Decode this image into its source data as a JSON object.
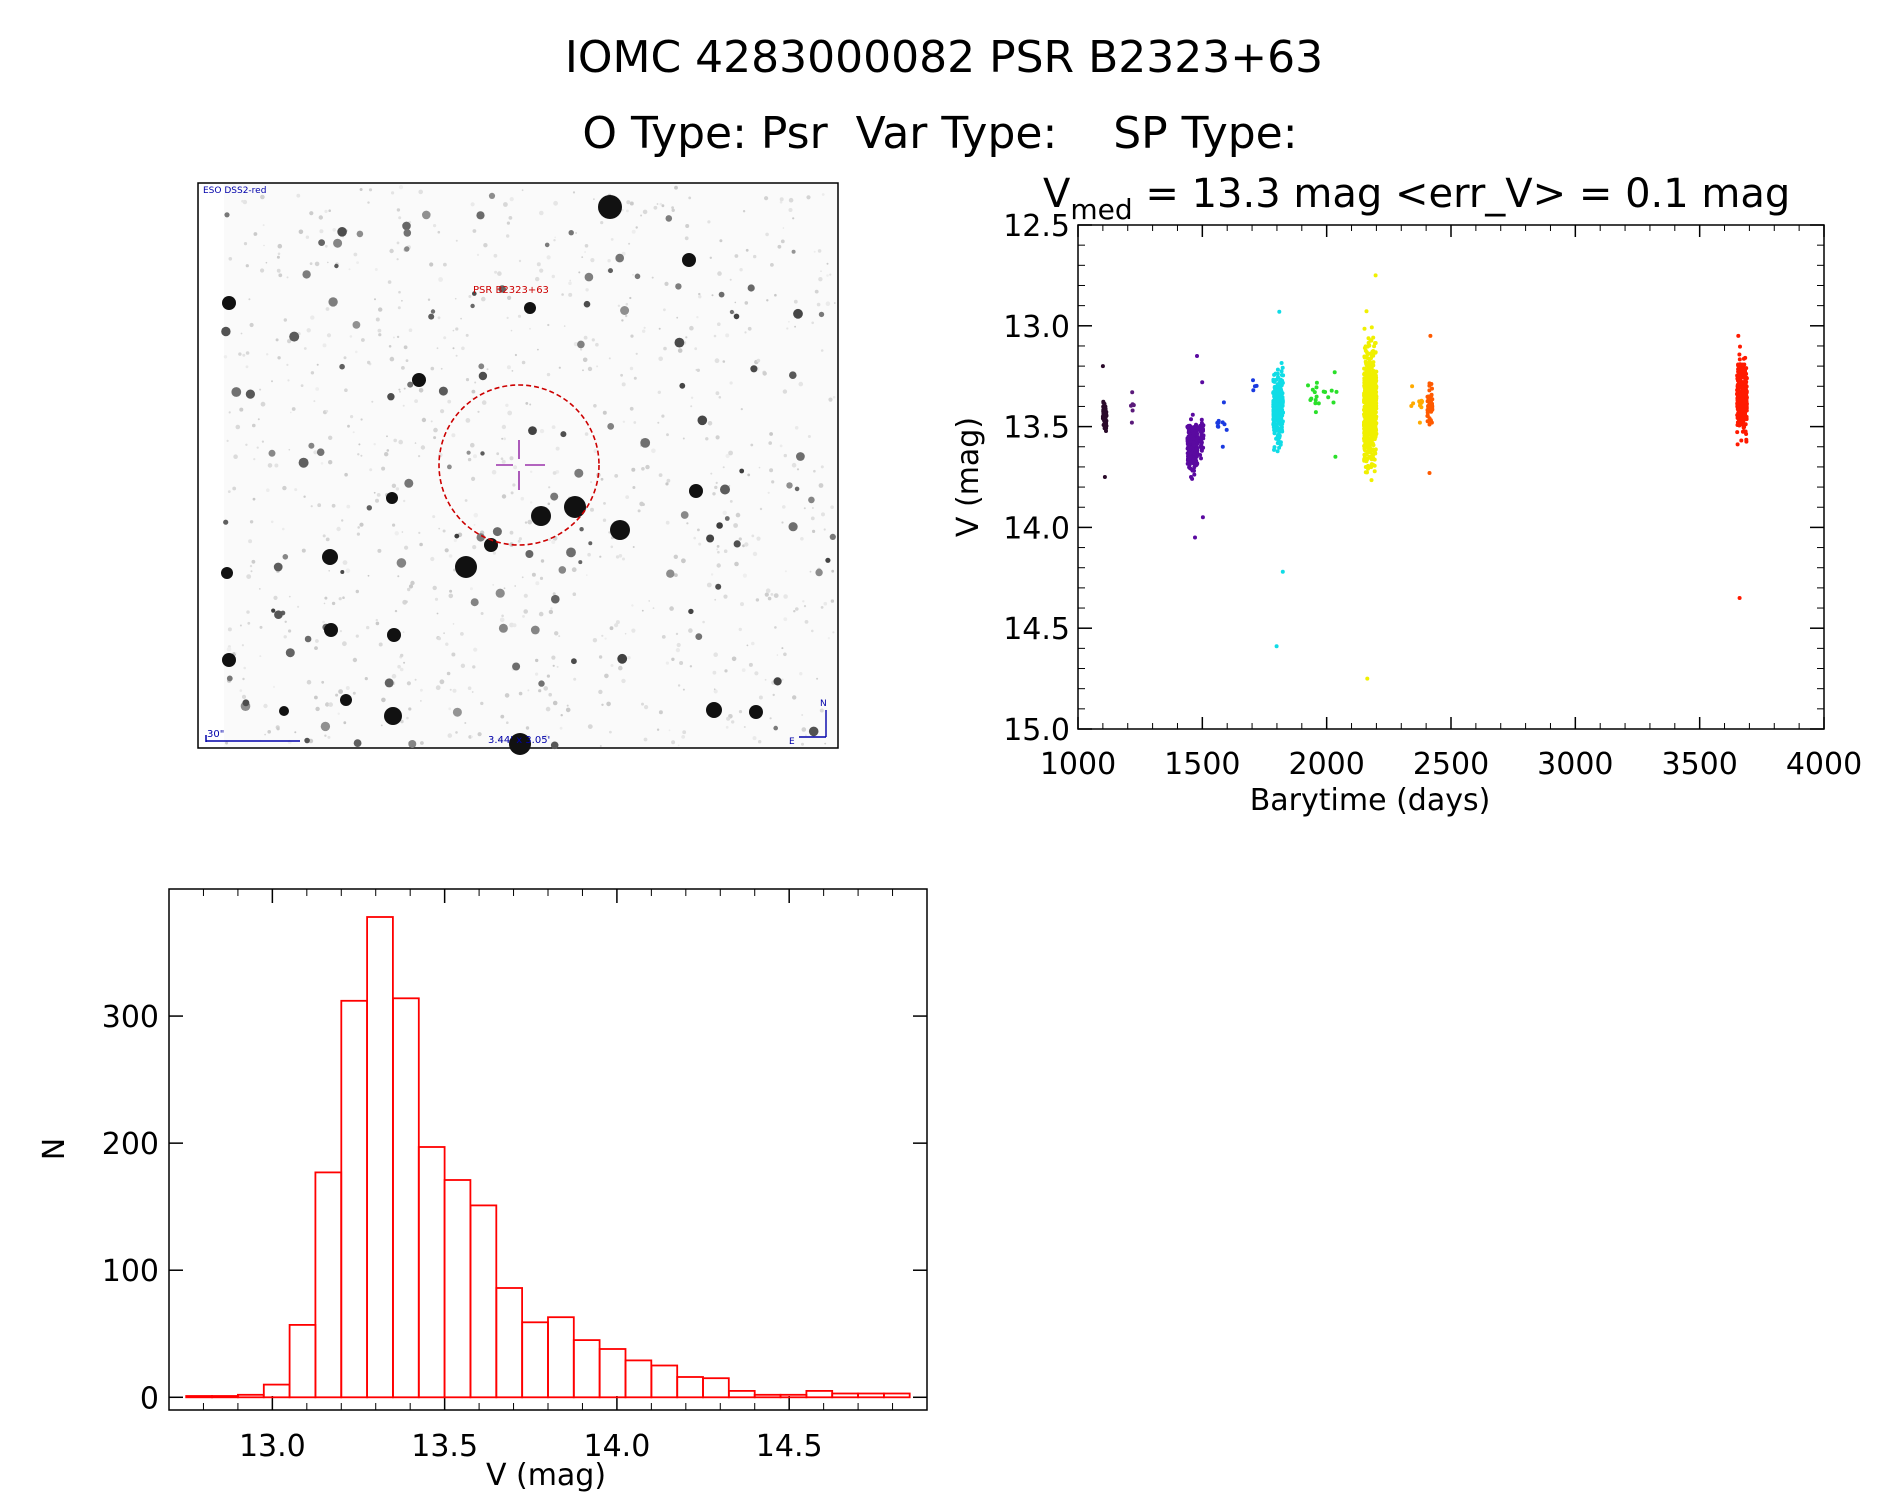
{
  "header": {
    "title": "IOMC 4283000082    PSR B2323+63",
    "subtitle": "O Type: Psr  Var Type:    SP Type:"
  },
  "finding_chart": {
    "survey_label": "ESO DSS2-red",
    "target_label": "PSR B2323+63",
    "scale_label": "30\"",
    "size_label": "3.44' x 3.05'",
    "north_label": "N",
    "east_label": "E",
    "colors": {
      "annotation": "#0000aa",
      "target": "#cc0000",
      "crosshair": "#9933aa"
    }
  },
  "chart_data": [
    {
      "type": "scatter",
      "title_main": "V",
      "title_sub": "med",
      "title_rest": " = 13.3 mag <err_V> = 0.1 mag",
      "xlabel": "Barytime (days)",
      "ylabel": "V (mag)",
      "xlim": [
        1000,
        4000
      ],
      "ylim": [
        15.0,
        12.5
      ],
      "y_inverted": true,
      "xticks": [
        1000,
        1500,
        2000,
        2500,
        3000,
        3500,
        4000
      ],
      "xtick_labels": [
        "1000",
        "1500",
        "2000",
        "2500",
        "3000",
        "3500",
        "4000"
      ],
      "yticks": [
        12.5,
        13.0,
        13.5,
        14.0,
        14.5,
        15.0
      ],
      "ytick_labels": [
        "12.5",
        "13.0",
        "13.5",
        "14.0",
        "14.5",
        "15.0"
      ],
      "series": [
        {
          "color": "#2a0a2a",
          "x_range": [
            1100,
            1115
          ],
          "y_range": [
            13.2,
            13.75
          ],
          "y_center": 13.45,
          "n": 60
        },
        {
          "color": "#5a1a7a",
          "x_range": [
            1210,
            1225
          ],
          "y_range": [
            13.33,
            13.48
          ],
          "y_center": 13.4,
          "n": 6
        },
        {
          "color": "#5a0aa0",
          "x_range": [
            1440,
            1480
          ],
          "y_range": [
            13.15,
            14.05
          ],
          "y_center": 13.6,
          "n": 260
        },
        {
          "color": "#5a0aa0",
          "x_range": [
            1490,
            1505
          ],
          "y_range": [
            13.28,
            13.95
          ],
          "y_center": 13.55,
          "n": 50
        },
        {
          "color": "#1a3ae0",
          "x_range": [
            1560,
            1600
          ],
          "y_range": [
            13.38,
            13.6
          ],
          "y_center": 13.5,
          "n": 10
        },
        {
          "color": "#1a3ae0",
          "x_range": [
            1700,
            1720
          ],
          "y_range": [
            13.27,
            13.32
          ],
          "y_center": 13.3,
          "n": 4
        },
        {
          "color": "#10dce6",
          "x_range": [
            1785,
            1825
          ],
          "y_range": [
            12.93,
            14.22
          ],
          "y_center": 13.4,
          "n": 300
        },
        {
          "color": "#10dce6",
          "x_range": [
            1795,
            1800
          ],
          "y_range": [
            14.59,
            14.61
          ],
          "y_center": 14.6,
          "n": 1
        },
        {
          "color": "#2ae02a",
          "x_range": [
            1920,
            2060
          ],
          "y_range": [
            13.23,
            13.65
          ],
          "y_center": 13.35,
          "n": 20
        },
        {
          "color": "#f0f000",
          "x_range": [
            2150,
            2200
          ],
          "y_range": [
            12.75,
            14.75
          ],
          "y_center": 13.4,
          "n": 650
        },
        {
          "color": "#ffaa00",
          "x_range": [
            2340,
            2390
          ],
          "y_range": [
            13.3,
            13.48
          ],
          "y_center": 13.38,
          "n": 12
        },
        {
          "color": "#ff5a00",
          "x_range": [
            2405,
            2425
          ],
          "y_range": [
            13.05,
            13.73
          ],
          "y_center": 13.4,
          "n": 60
        },
        {
          "color": "#ff1a00",
          "x_range": [
            3650,
            3690
          ],
          "y_range": [
            13.05,
            14.35
          ],
          "y_center": 13.35,
          "n": 300
        }
      ]
    },
    {
      "type": "bar",
      "subtype": "histogram",
      "xlabel": "V (mag)",
      "ylabel": "N",
      "xlim": [
        12.7,
        14.9
      ],
      "ylim": [
        -10,
        400
      ],
      "xticks": [
        13.0,
        13.5,
        14.0,
        14.5
      ],
      "xtick_labels": [
        "13.0",
        "13.5",
        "14.0",
        "14.5"
      ],
      "yticks": [
        0,
        100,
        200,
        300
      ],
      "ytick_labels": [
        "0",
        "100",
        "200",
        "300"
      ],
      "bin_width": 0.075,
      "bin_edges_start": 12.75,
      "counts": [
        1,
        1,
        2,
        10,
        57,
        177,
        312,
        378,
        314,
        197,
        171,
        151,
        86,
        59,
        63,
        45,
        38,
        29,
        25,
        16,
        15,
        5,
        2,
        2,
        5,
        3,
        3,
        3
      ],
      "color": "#ff0000"
    }
  ]
}
